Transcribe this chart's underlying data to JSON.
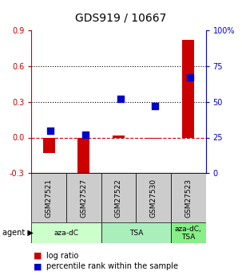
{
  "title": "GDS919 / 10667",
  "samples": [
    "GSM27521",
    "GSM27527",
    "GSM27522",
    "GSM27530",
    "GSM27523"
  ],
  "log_ratio": [
    -0.13,
    -0.35,
    0.02,
    -0.01,
    0.82
  ],
  "percentile_rank_pct": [
    30,
    27,
    52,
    47,
    67
  ],
  "bar_color": "#cc0000",
  "dot_color": "#0000cc",
  "ylim_left": [
    -0.3,
    0.9
  ],
  "ylim_right": [
    0,
    100
  ],
  "yticks_left": [
    -0.3,
    0.0,
    0.3,
    0.6,
    0.9
  ],
  "yticks_right": [
    0,
    25,
    50,
    75,
    100
  ],
  "ytick_right_labels": [
    "0",
    "25",
    "50",
    "75",
    "100%"
  ],
  "hline_zero_color": "#cc0000",
  "hline_dotted_color": "#000000",
  "sample_bg_color": "#cccccc",
  "background_color": "#ffffff",
  "agent_info": [
    {
      "label": "aza-dC",
      "start": 0,
      "end": 2,
      "color": "#ccffcc"
    },
    {
      "label": "TSA",
      "start": 2,
      "end": 4,
      "color": "#aaeebb"
    },
    {
      "label": "aza-dC,\nTSA",
      "start": 4,
      "end": 5,
      "color": "#88ee88"
    }
  ]
}
